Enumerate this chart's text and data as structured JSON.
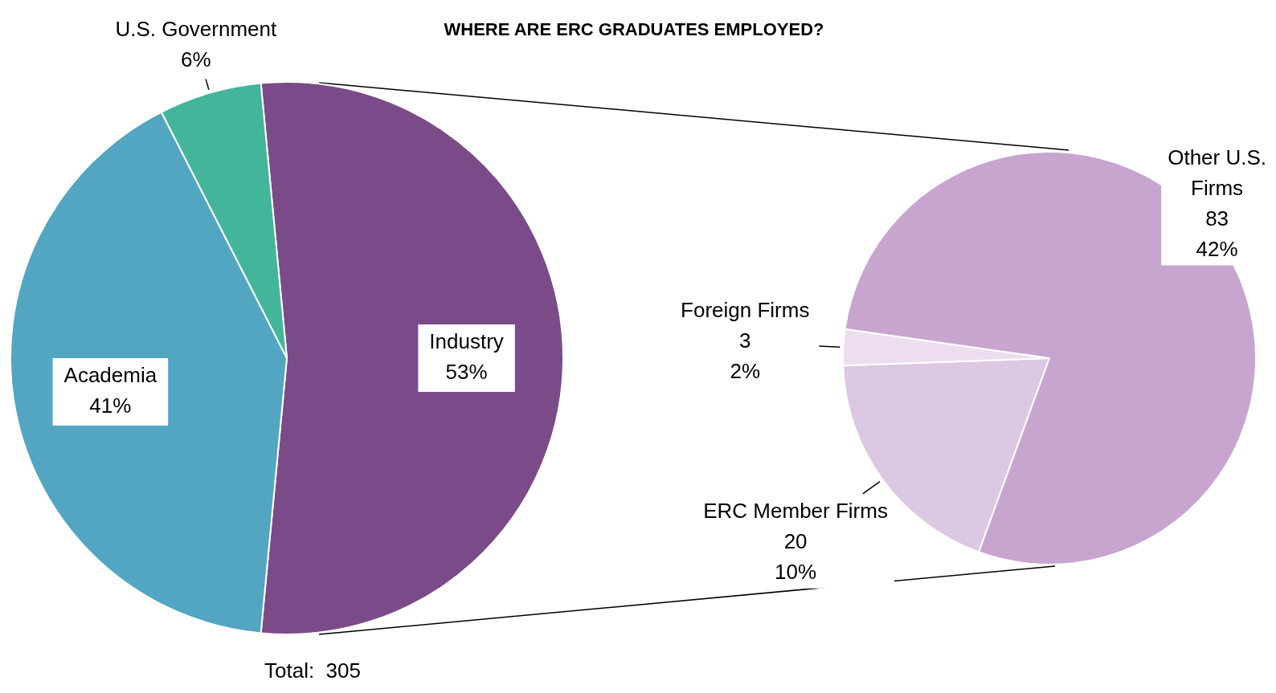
{
  "chart_data": [
    {
      "type": "pie",
      "title": "WHERE ARE ERC GRADUATES EMPLOYED?",
      "categories": [
        "Industry",
        "Academia",
        "U.S. Government"
      ],
      "values": [
        53,
        41,
        6
      ],
      "colors": [
        "#7b4a89",
        "#52a6c1",
        "#42b59b"
      ],
      "value_labels": [
        "53%",
        "41%",
        "6%"
      ],
      "annotations": [
        "Total:  305"
      ],
      "legend": false
    },
    {
      "type": "pie",
      "categories": [
        "ERC Member Firms",
        "Foreign Firms",
        "Other U.S. Firms"
      ],
      "values": [
        20,
        3,
        83
      ],
      "colors": [
        "#dcc8e2",
        "#ecdeef",
        "#c7a5cf"
      ],
      "value_labels": [
        "20\n10%",
        "3\n2%",
        "83\n42%"
      ],
      "legend": false
    }
  ]
}
